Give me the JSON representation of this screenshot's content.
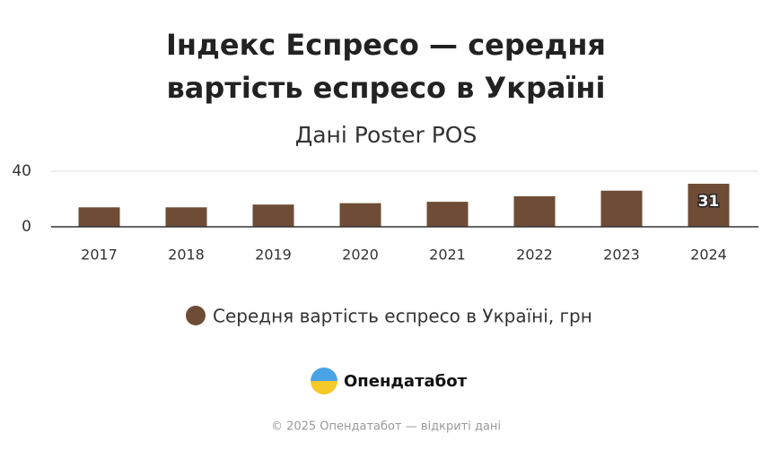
{
  "chart_data": {
    "type": "bar",
    "title": "Індекс Еспресо — середня вартість еспресо в Україні",
    "subtitle": "Дані Poster POS",
    "categories": [
      "2017",
      "2018",
      "2019",
      "2020",
      "2021",
      "2022",
      "2023",
      "2024"
    ],
    "series": [
      {
        "name": "Середня вартість еспресо в Україні, грн",
        "color": "#6e4c36",
        "values": [
          14,
          14,
          16,
          17,
          18,
          22,
          26,
          31
        ],
        "value_labels": [
          null,
          null,
          null,
          null,
          null,
          null,
          null,
          "31"
        ]
      }
    ],
    "ylim": [
      0,
      40
    ],
    "yticks": [
      0,
      40
    ],
    "grid": true,
    "brand": "Опендатабот",
    "footer": "© 2025 Опендатабот — відкриті дані"
  }
}
